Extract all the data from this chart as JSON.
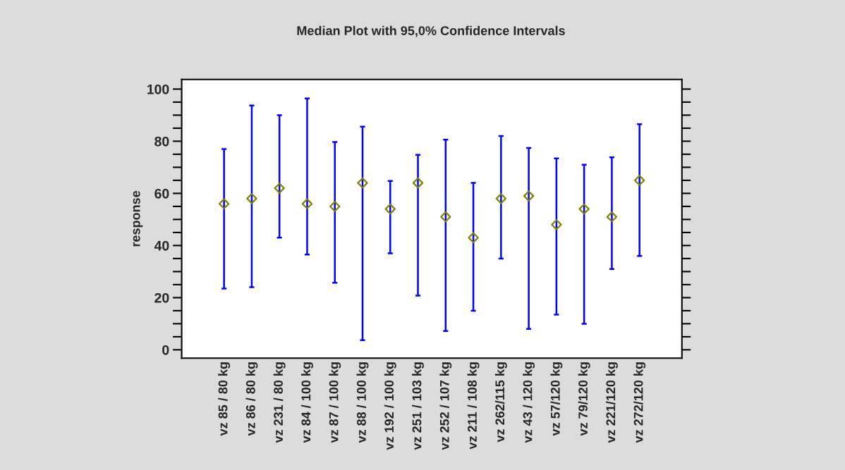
{
  "chart_data": {
    "type": "scatter",
    "title": "Median Plot with 95,0% Confidence Intervals",
    "ylabel": "response",
    "categories": [
      "vz 85 / 80 kg",
      "vz 86 / 80 kg",
      "vz 231 / 80 kg",
      "vz 84 / 100 kg",
      "vz 87 / 100 kg",
      "vz 88 / 100 kg",
      "vz 192 / 100 kg",
      "vz 251 / 103 kg",
      "vz 252 / 107 kg",
      "vz 211 / 108 kg",
      "vz 262/115 kg",
      "vz 43 / 120 kg",
      "vz 57/120 kg",
      "vz 79/120 kg",
      "vz 221/120 kg",
      "vz 272/120 kg"
    ],
    "series": [
      {
        "color": "#808000",
        "values": [
          56,
          58,
          62,
          56,
          55,
          64,
          54,
          64,
          51,
          43,
          58,
          59,
          48,
          54,
          51,
          65
        ],
        "errors": [
          [
            23.5,
            77
          ],
          [
            24,
            93.7
          ],
          [
            43,
            90
          ],
          [
            36.5,
            96.4
          ],
          [
            25.7,
            79.7
          ],
          [
            3.7,
            85.6
          ],
          [
            37,
            64.8
          ],
          [
            20.8,
            74.8
          ],
          [
            7.2,
            80.6
          ],
          [
            15,
            64
          ],
          [
            35,
            82
          ],
          [
            8,
            77.4
          ],
          [
            13.5,
            73.4
          ],
          [
            10,
            71
          ],
          [
            31,
            73.8
          ],
          [
            36,
            86.5
          ]
        ]
      }
    ],
    "marker": "diamond",
    "ylim": [
      -3.2,
      103.7
    ],
    "yticks": [
      0,
      20,
      40,
      60,
      80,
      100
    ],
    "grid": false,
    "legend": false
  }
}
